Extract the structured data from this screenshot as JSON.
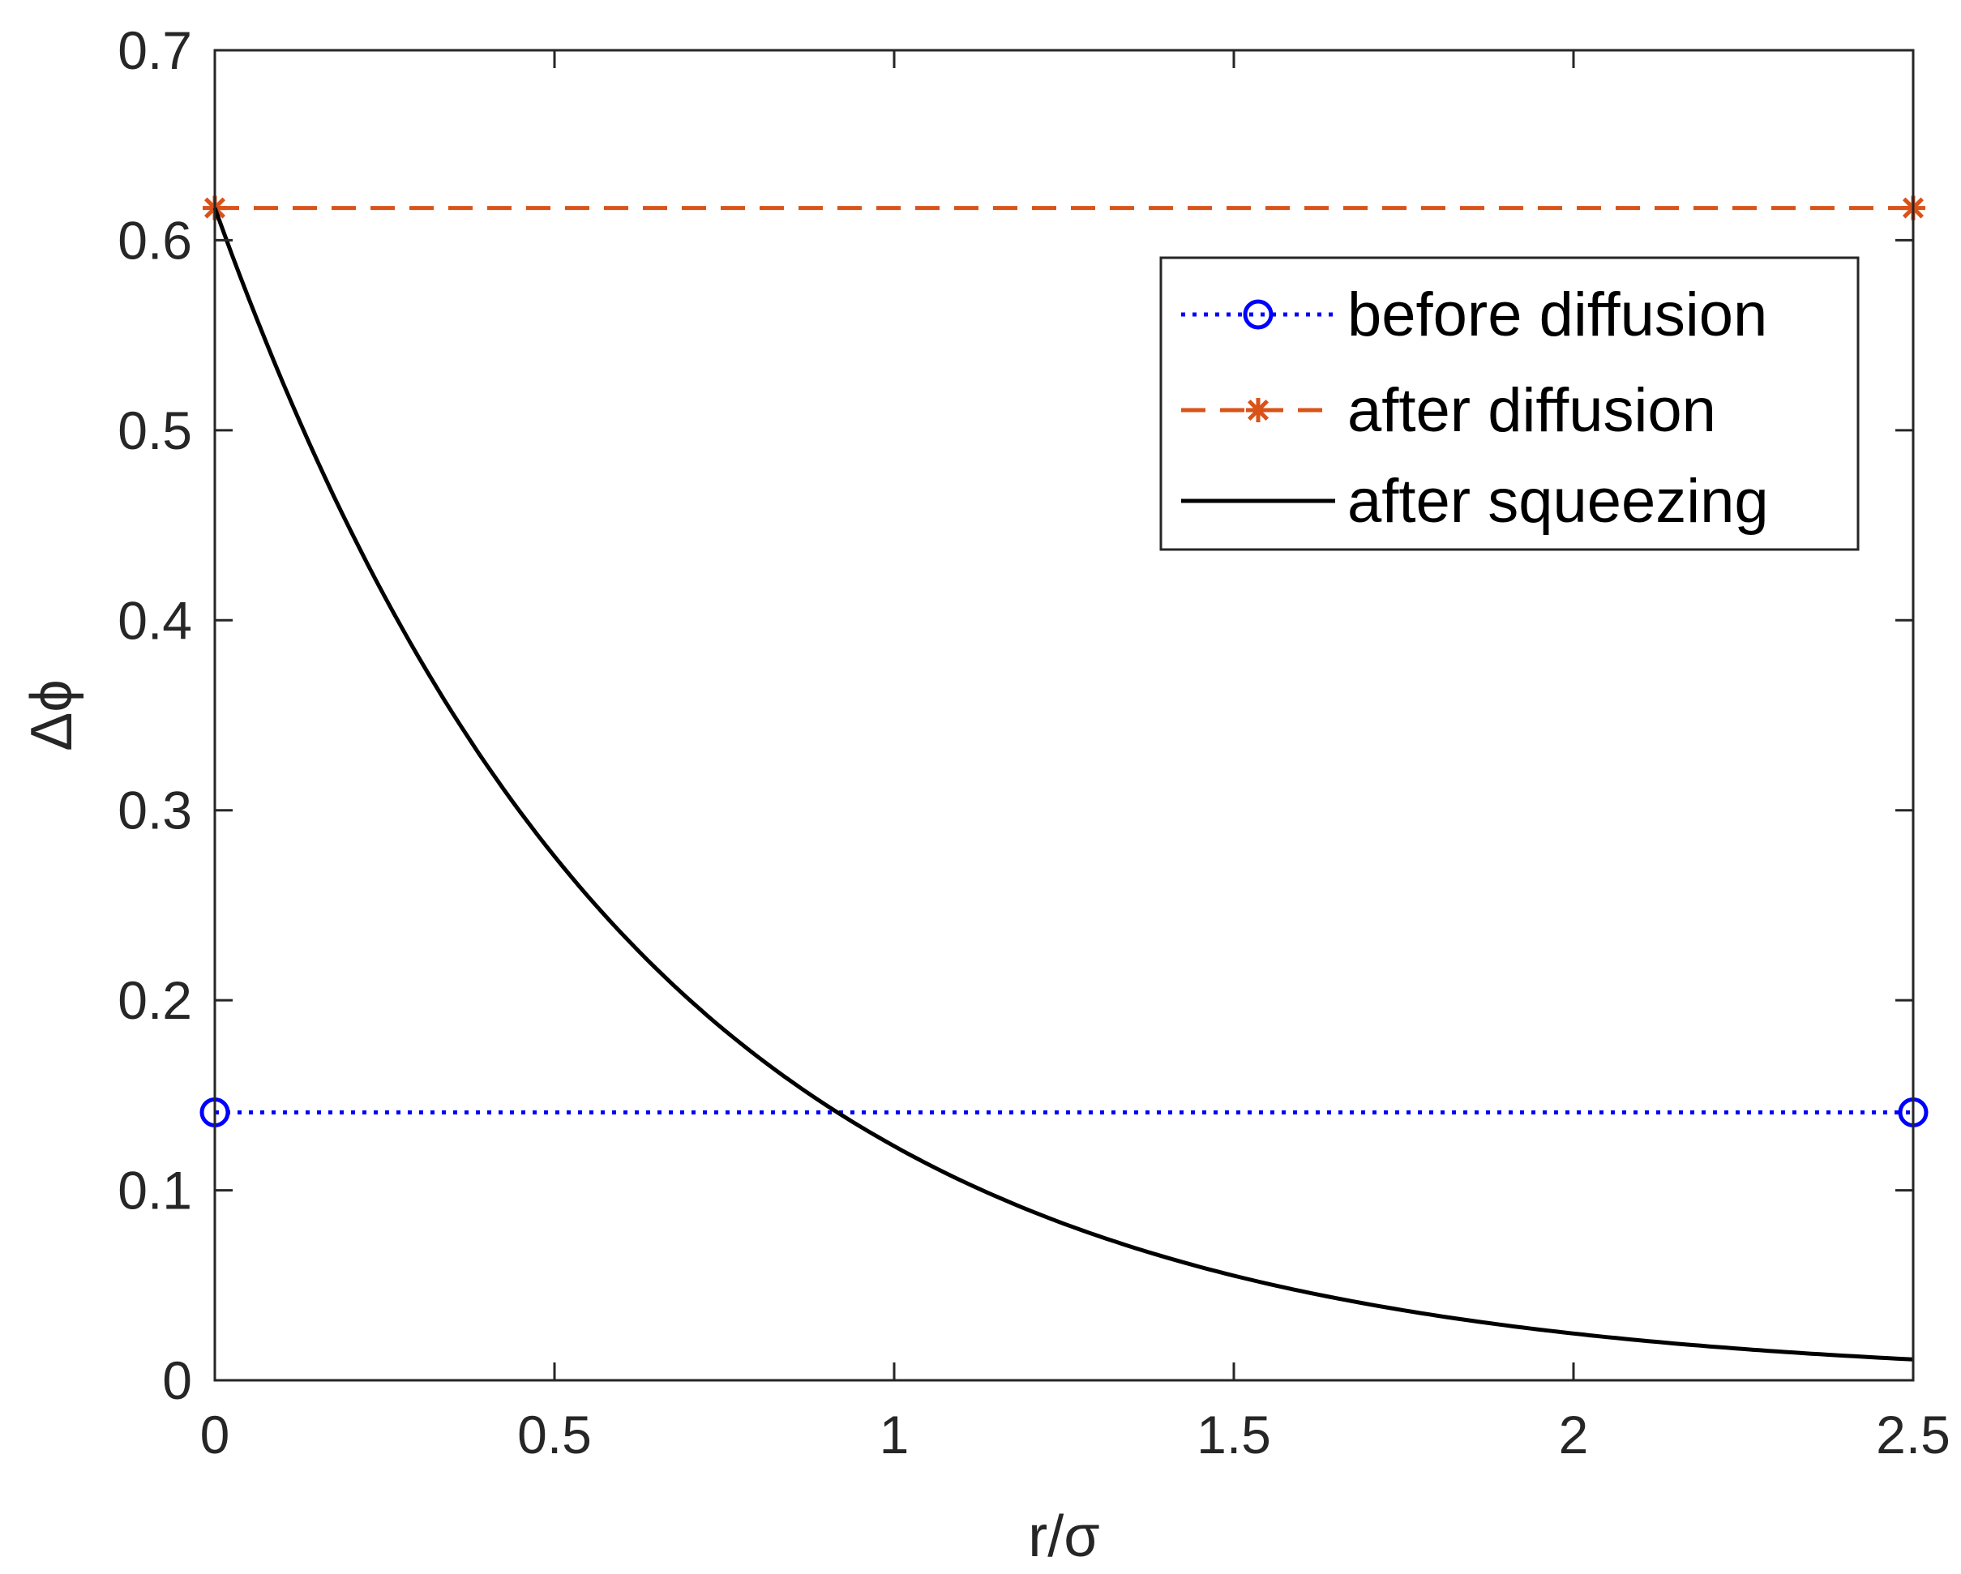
{
  "chart_data": {
    "type": "line",
    "title": "",
    "xlabel": "r/σ",
    "ylabel": "Δϕ",
    "xlim": [
      0,
      2.5
    ],
    "ylim": [
      0,
      0.7
    ],
    "xticks": [
      0,
      0.5,
      1,
      1.5,
      2,
      2.5
    ],
    "xtick_labels": [
      "0",
      "0.5",
      "1",
      "1.5",
      "2",
      "2.5"
    ],
    "yticks": [
      0,
      0.1,
      0.2,
      0.3,
      0.4,
      0.5,
      0.6,
      0.7
    ],
    "ytick_labels": [
      "0",
      "0.1",
      "0.2",
      "0.3",
      "0.4",
      "0.5",
      "0.6",
      "0.7"
    ],
    "grid": false,
    "legend_position": "top-right",
    "series": [
      {
        "name": "before diffusion",
        "color": "#0000ff",
        "line_style": "dotted",
        "marker": "circle",
        "x": [
          0,
          2.5
        ],
        "y": [
          0.141,
          0.141
        ]
      },
      {
        "name": "after diffusion",
        "color": "#d95319",
        "line_style": "dashed",
        "marker": "asterisk",
        "x": [
          0,
          2.5
        ],
        "y": [
          0.617,
          0.617
        ]
      },
      {
        "name": "after squeezing",
        "color": "#000000",
        "line_style": "solid",
        "marker": "none",
        "x": [
          0,
          0.1,
          0.2,
          0.3,
          0.4,
          0.5,
          0.6,
          0.7,
          0.8,
          0.9,
          1.0,
          1.1,
          1.2,
          1.3,
          1.4,
          1.5,
          1.6,
          1.7,
          1.8,
          1.9,
          2.0,
          2.1,
          2.2,
          2.3,
          2.4,
          2.5
        ],
        "y": [
          0.617,
          0.525,
          0.448,
          0.381,
          0.325,
          0.277,
          0.235,
          0.2,
          0.171,
          0.145,
          0.124,
          0.105,
          0.09,
          0.077,
          0.065,
          0.056,
          0.047,
          0.04,
          0.034,
          0.029,
          0.025,
          0.021,
          0.018,
          0.016,
          0.013,
          0.011
        ]
      }
    ]
  }
}
